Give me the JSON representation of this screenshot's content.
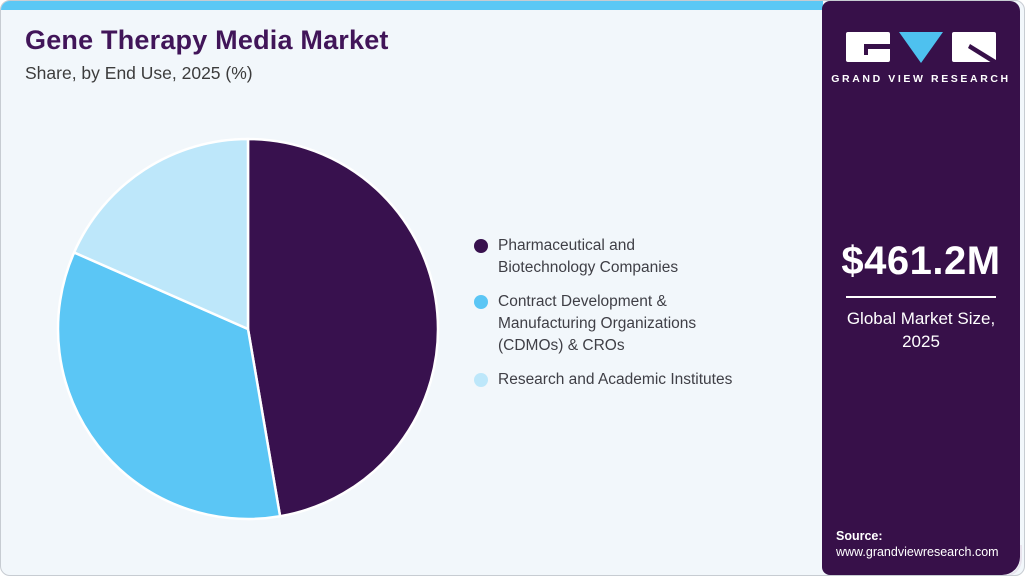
{
  "header": {
    "title": "Gene Therapy Media Market",
    "subtitle": "Share, by End Use, 2025 (%)"
  },
  "chart_data": {
    "type": "pie",
    "title": "Gene Therapy Media Market Share, by End Use, 2025 (%)",
    "labels": [
      "Pharmaceutical and Biotechnology Companies",
      "Contract Development & Manufacturing Organizations (CDMOs) & CROs",
      "Research and Academic Institutes"
    ],
    "values": [
      47.3,
      34.3,
      18.4
    ],
    "values_note": "estimated from slice angles; no numeric labels shown on chart",
    "colors": [
      "#38114E",
      "#5BC6F5",
      "#BDE7FA"
    ],
    "start_angle": "top",
    "direction": "clockwise",
    "legend_position": "right",
    "value_labels_shown": false
  },
  "legend": {
    "items": [
      {
        "label": "Pharmaceutical and\nBiotechnology Companies"
      },
      {
        "label": "Contract Development &\nManufacturing Organizations\n(CDMOs) & CROs"
      },
      {
        "label": "Research and Academic Institutes"
      }
    ]
  },
  "sidebar": {
    "brand_name": "GRAND VIEW RESEARCH",
    "market_size_value": "$461.2M",
    "market_size_label": "Global Market Size,\n2025",
    "source_label": "Source:",
    "source_url": "www.grandviewresearch.com",
    "background_color": "#371049",
    "accent_blue": "#5BC8F5"
  }
}
